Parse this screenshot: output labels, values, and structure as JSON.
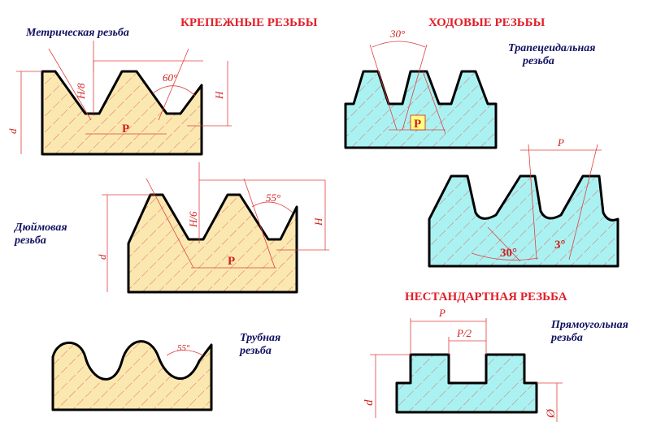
{
  "headers": {
    "fastening": "КРЕПЕЖНЫЕ РЕЗЬБЫ",
    "running": "ХОДОВЫЕ РЕЗЬБЫ",
    "nonstandard": "НЕСТАНДАРТНАЯ РЕЗЬБА"
  },
  "metric": {
    "name": "Метрическая резьба",
    "angle": "60°",
    "h8": "H/8",
    "h": "H",
    "d": "d",
    "p": "P"
  },
  "inch": {
    "name": [
      "Дюймовая",
      "резьба"
    ],
    "angle": "55°",
    "h6": "H/6",
    "h": "H",
    "d": "d",
    "p": "P"
  },
  "pipe": {
    "name": [
      "Трубная",
      "резьба"
    ],
    "angle": "55°"
  },
  "trapezoidal": {
    "name": [
      "Трапецеидальная",
      "резьба"
    ],
    "angle": "30°",
    "p": "P"
  },
  "buttress": {
    "p": "P",
    "angle1": "30°",
    "angle2": "3°"
  },
  "rectangular": {
    "name": [
      "Прямоугольная",
      "резьба"
    ],
    "p": "P",
    "p2": "P/2",
    "d": "d",
    "d1": "Ø"
  }
}
